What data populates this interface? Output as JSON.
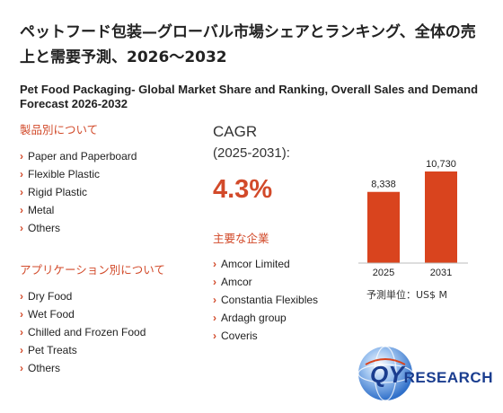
{
  "header": {
    "title_jp": "ペットフード包装—グローバル市場シェアとランキング、全体の売上と需要予測、2026～2032",
    "title_en": "Pet Food Packaging- Global Market Share and Ranking, Overall Sales and Demand Forecast 2026-2032"
  },
  "by_product": {
    "heading": "製品別について",
    "items": [
      "Paper and Paperboard",
      "Flexible Plastic",
      "Rigid Plastic",
      "Metal",
      "Others"
    ]
  },
  "by_application": {
    "heading": "アプリケーション別について",
    "items": [
      "Dry Food",
      "Wet Food",
      "Chilled and Frozen Food",
      "Pet Treats",
      "Others"
    ]
  },
  "cagr": {
    "label": "CAGR",
    "period": "(2025-2031):",
    "value": "4.3%"
  },
  "companies": {
    "heading": "主要な企業",
    "items": [
      "Amcor Limited",
      "Amcor",
      "Constantia Flexibles",
      "Ardagh group",
      "Coveris"
    ]
  },
  "chart_data": {
    "type": "bar",
    "categories": [
      "2025",
      "2031"
    ],
    "values": [
      8338,
      10730
    ],
    "value_labels": [
      "8,338",
      "10,730"
    ],
    "ylim": [
      0,
      10730
    ],
    "unit_label": "予測単位：US$ M",
    "bar_color": "#d9441e"
  },
  "logo": {
    "letters": "QY",
    "word": "RESEARCH"
  },
  "colors": {
    "accent": "#d24a2a",
    "logo_blue": "#1a3d8f"
  }
}
